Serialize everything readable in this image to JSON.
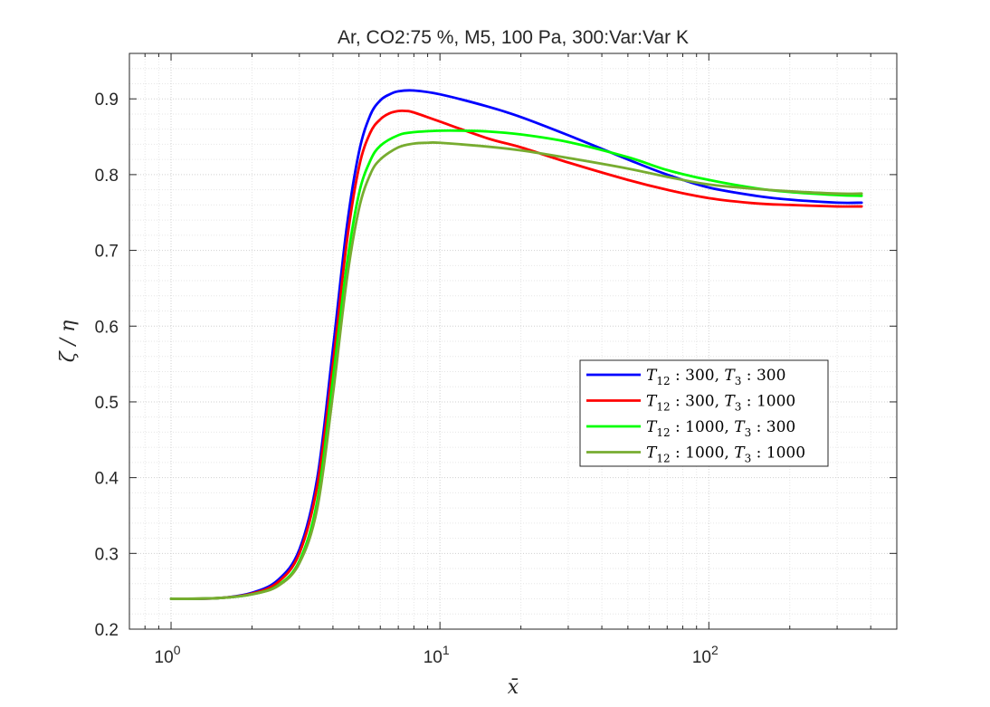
{
  "chart_data": {
    "type": "line",
    "title": "Ar, CO2:75 %, M5, 100 Pa, 300:Var:Var K",
    "xlabel": "x̄",
    "ylabel": "ζ / η",
    "xscale": "log",
    "xlim": [
      0.7,
      500
    ],
    "ylim": [
      0.2,
      0.96
    ],
    "grid": true,
    "minor_grid": true,
    "legend_position": "center-right",
    "x_tick_labels": [
      {
        "x": 1,
        "base": "10",
        "exp": "0"
      },
      {
        "x": 10,
        "base": "10",
        "exp": "1"
      },
      {
        "x": 100,
        "base": "10",
        "exp": "2"
      }
    ],
    "y_ticks": [
      0.2,
      0.3,
      0.4,
      0.5,
      0.6,
      0.7,
      0.8,
      0.9
    ],
    "y_tick_labels": [
      "0.2",
      "0.3",
      "0.4",
      "0.5",
      "0.6",
      "0.7",
      "0.8",
      "0.9"
    ],
    "series": [
      {
        "name": "T12 : 300, T3 : 300",
        "legend": {
          "a": "T",
          "sub": "12",
          "b": " : 300, ",
          "c": "T",
          "sub2": "3",
          "d": " : 300"
        },
        "color": "#0000ff",
        "x": [
          1.0,
          1.5,
          2.0,
          2.5,
          3.0,
          3.5,
          4.0,
          4.5,
          5.0,
          5.5,
          6.0,
          6.5,
          7.0,
          8.0,
          10.0,
          15.0,
          20.0,
          30.0,
          50.0,
          70.0,
          100.0,
          150.0,
          200.0,
          300.0,
          370.0
        ],
        "y": [
          0.24,
          0.241,
          0.248,
          0.265,
          0.305,
          0.4,
          0.57,
          0.73,
          0.83,
          0.878,
          0.898,
          0.906,
          0.91,
          0.911,
          0.906,
          0.89,
          0.876,
          0.852,
          0.82,
          0.8,
          0.783,
          0.772,
          0.767,
          0.763,
          0.763
        ]
      },
      {
        "name": "T12 : 300, T3 : 1000",
        "legend": {
          "a": "T",
          "sub": "12",
          "b": " : 300, ",
          "c": "T",
          "sub2": "3",
          "d": " : 1000"
        },
        "color": "#ff0000",
        "x": [
          1.0,
          1.5,
          2.0,
          2.5,
          3.0,
          3.5,
          4.0,
          4.5,
          5.0,
          5.5,
          6.0,
          6.5,
          7.0,
          7.5,
          8.0,
          10.0,
          15.0,
          20.0,
          30.0,
          50.0,
          70.0,
          100.0,
          150.0,
          200.0,
          300.0,
          370.0
        ],
        "y": [
          0.24,
          0.241,
          0.247,
          0.262,
          0.3,
          0.39,
          0.55,
          0.71,
          0.81,
          0.855,
          0.873,
          0.881,
          0.884,
          0.884,
          0.882,
          0.87,
          0.848,
          0.836,
          0.816,
          0.793,
          0.78,
          0.769,
          0.762,
          0.76,
          0.758,
          0.758
        ]
      },
      {
        "name": "T12 : 1000, T3 : 300",
        "legend": {
          "a": "T",
          "sub": "12",
          "b": " : 1000, ",
          "c": "T",
          "sub2": "3",
          "d": " : 300"
        },
        "color": "#00ff00",
        "x": [
          1.0,
          1.5,
          2.0,
          2.5,
          3.0,
          3.5,
          4.0,
          4.5,
          5.0,
          5.5,
          6.0,
          7.0,
          8.0,
          10.0,
          12.0,
          15.0,
          20.0,
          30.0,
          50.0,
          70.0,
          100.0,
          150.0,
          200.0,
          300.0,
          370.0
        ],
        "y": [
          0.24,
          0.241,
          0.246,
          0.258,
          0.29,
          0.37,
          0.53,
          0.68,
          0.775,
          0.818,
          0.838,
          0.852,
          0.856,
          0.858,
          0.858,
          0.857,
          0.853,
          0.843,
          0.823,
          0.806,
          0.793,
          0.782,
          0.777,
          0.773,
          0.772
        ]
      },
      {
        "name": "T12 : 1000, T3 : 1000",
        "legend": {
          "a": "T",
          "sub": "12",
          "b": " : 1000, ",
          "c": "T",
          "sub2": "3",
          "d": " : 1000"
        },
        "color": "#77ac30",
        "x": [
          1.0,
          1.5,
          2.0,
          2.5,
          3.0,
          3.5,
          4.0,
          4.5,
          5.0,
          5.5,
          6.0,
          7.0,
          8.0,
          9.0,
          10.0,
          15.0,
          20.0,
          30.0,
          50.0,
          70.0,
          100.0,
          150.0,
          200.0,
          300.0,
          370.0
        ],
        "y": [
          0.24,
          0.241,
          0.246,
          0.257,
          0.287,
          0.36,
          0.51,
          0.66,
          0.755,
          0.8,
          0.82,
          0.836,
          0.841,
          0.842,
          0.842,
          0.837,
          0.832,
          0.822,
          0.808,
          0.797,
          0.787,
          0.781,
          0.778,
          0.775,
          0.775
        ]
      }
    ]
  }
}
